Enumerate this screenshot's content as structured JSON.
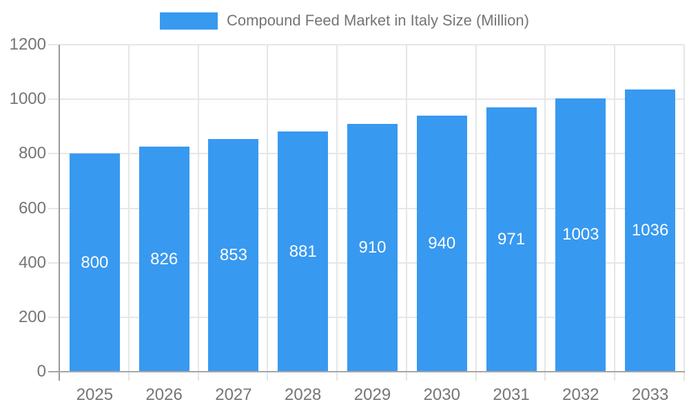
{
  "legend": {
    "label": "Compound Feed Market in Italy Size (Million)",
    "swatch_color": "#3899f0"
  },
  "chart_data": {
    "type": "bar",
    "title": "Compound Feed Market in Italy Size (Million)",
    "categories": [
      "2025",
      "2026",
      "2027",
      "2028",
      "2029",
      "2030",
      "2031",
      "2032",
      "2033"
    ],
    "values": [
      800,
      826,
      853,
      881,
      910,
      940,
      971,
      1003,
      1036
    ],
    "bar_value_labels": [
      "800",
      "826",
      "853",
      "881",
      "910",
      "940",
      "971",
      "1003",
      "1036"
    ],
    "series_color": "#3899f0",
    "bar_label_color": "#ffffff",
    "axis_text_color": "#757575",
    "xlabel": "",
    "ylabel": "",
    "ylim": [
      0,
      1200
    ],
    "yticks": [
      0,
      200,
      400,
      600,
      800,
      1000,
      1200
    ],
    "grid": true,
    "legend_position": "top",
    "bar_labels_position": "inside-center"
  }
}
